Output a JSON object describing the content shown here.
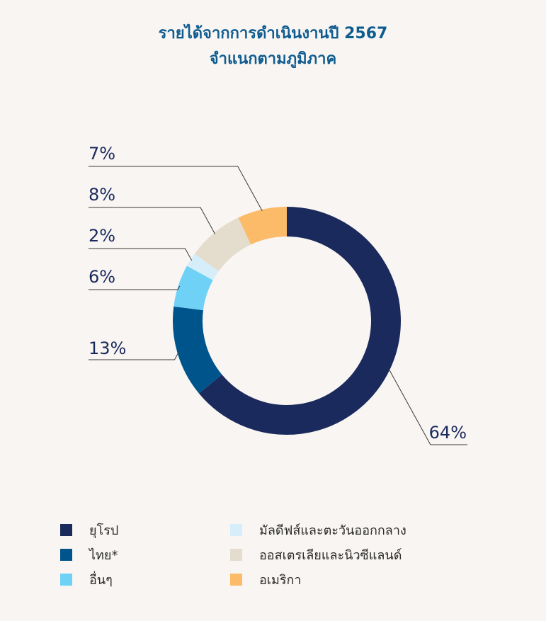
{
  "chart_data": {
    "type": "pie",
    "variant": "donut",
    "title_lines": [
      "รายได้จากการดำเนินงานปี 2567",
      "จำแนกตามภูมิภาค"
    ],
    "unit": "%",
    "slices": [
      {
        "name": "ยุโรป",
        "value": 64,
        "label": "64%",
        "color": "#1b2a5c"
      },
      {
        "name": "ไทย*",
        "value": 13,
        "label": "13%",
        "color": "#00548c"
      },
      {
        "name": "อื่นๆ",
        "value": 6,
        "label": "6%",
        "color": "#6ed1f5"
      },
      {
        "name": "มัลดีฟส์และตะวันออกกลาง",
        "value": 2,
        "label": "2%",
        "color": "#d6eefa"
      },
      {
        "name": "ออสเตรเลียและนิวซีแลนด์",
        "value": 8,
        "label": "8%",
        "color": "#e4dccd"
      },
      {
        "name": "อเมริกา",
        "value": 7,
        "label": "7%",
        "color": "#fbbb68"
      }
    ],
    "legend_placement": "bottom"
  },
  "legend": {
    "items": [
      {
        "label": "ยุโรป",
        "color": "#1b2a5c"
      },
      {
        "label": "ไทย*",
        "color": "#00548c"
      },
      {
        "label": "อื่นๆ",
        "color": "#6ed1f5"
      },
      {
        "label": "มัลดีฟส์และตะวันออกกลาง",
        "color": "#d6eefa"
      },
      {
        "label": "ออสเตรเลียและนิวซีแลนด์",
        "color": "#e4dccd"
      },
      {
        "label": "อเมริกา",
        "color": "#fbbb68"
      }
    ]
  },
  "colors": {
    "background": "#f8f5f2",
    "title": "#0f5c8f",
    "label_text": "#1b2a5c",
    "leader_line": "#3a3a3a"
  }
}
